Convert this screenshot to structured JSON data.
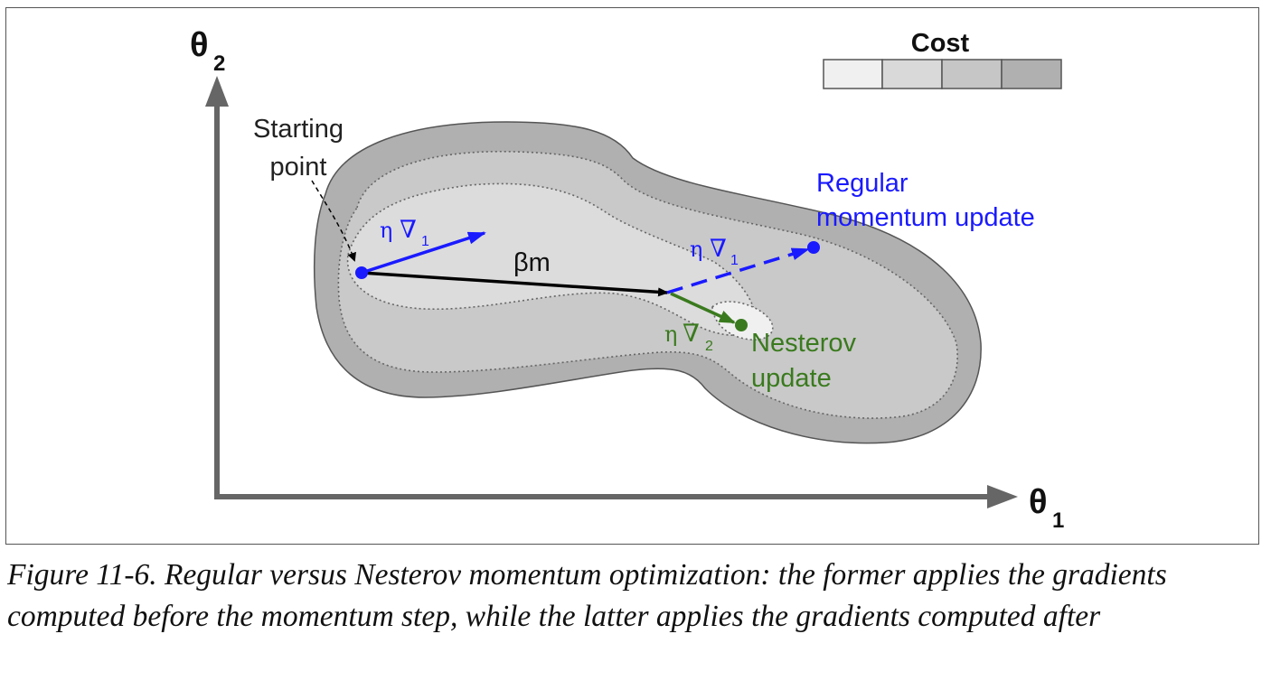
{
  "axes": {
    "y_label": "θ",
    "y_subscript": "2",
    "x_label": "θ",
    "x_subscript": "1"
  },
  "legend": {
    "title": "Cost",
    "swatches": [
      "#f0f0f0",
      "#d9d9d9",
      "#c6c6c6",
      "#b0b0b0"
    ]
  },
  "annotations": {
    "starting_point_line1": "Starting",
    "starting_point_line2": "point",
    "momentum_label": "βm",
    "eta": "η",
    "nabla": "∇",
    "grad1_sub": "1",
    "grad2_sub": "2",
    "regular_line1": "Regular",
    "regular_line2": "momentum update",
    "nesterov_line1": "Nesterov",
    "nesterov_line2": "update"
  },
  "colors": {
    "regular": "#1a1aff",
    "nesterov": "#3a7a1e",
    "momentum": "#000000",
    "axis": "#666666"
  },
  "caption": {
    "text": "Figure 11-6. Regular versus Nesterov momentum optimization: the former applies the gradients computed before the momentum step, while the latter applies the gradients computed after"
  }
}
